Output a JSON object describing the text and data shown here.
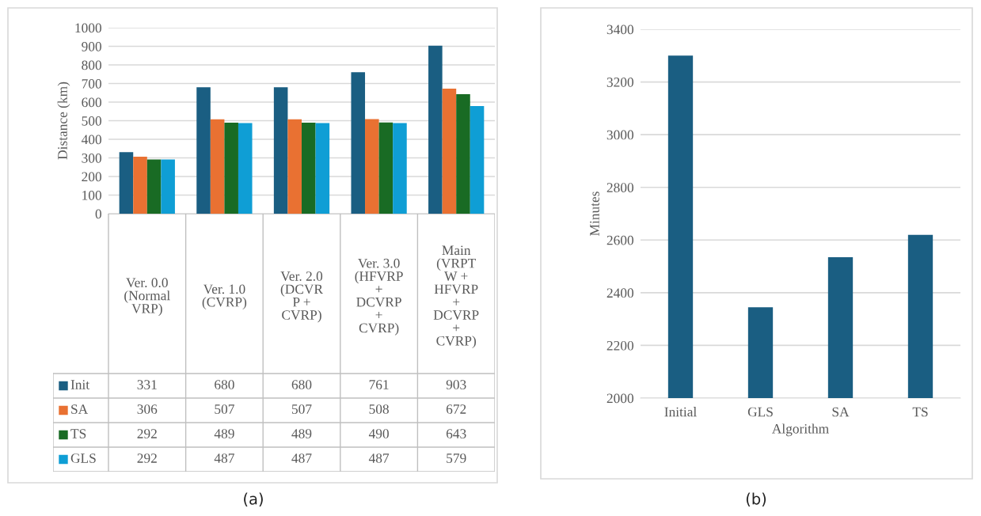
{
  "chart_data": [
    {
      "type": "bar",
      "ylabel": "Distance (km)",
      "ylim": [
        0,
        1000
      ],
      "yticks": [
        0,
        100,
        200,
        300,
        400,
        500,
        600,
        700,
        800,
        900,
        1000
      ],
      "grid": "y",
      "data_labels": true,
      "legend": "bottom",
      "categories": [
        "Ver. 0.0\n(Normal\nVRP)",
        "Ver. 1.0\n(CVRP)",
        "Ver. 2.0\n(DCVR\nP +\nCVRP)",
        "Ver. 3.0\n(HFVRP\n+\nDCVRP\n+\nCVRP)",
        "Main\n(VRPT\nW +\nHFVRP\n+\nDCVRP\n+\nCVRP)"
      ],
      "series": [
        {
          "name": "Init",
          "color": "#1a5e82",
          "values": [
            331,
            680,
            680,
            761,
            903
          ]
        },
        {
          "name": "SA",
          "color": "#e97132",
          "values": [
            306,
            507,
            507,
            508,
            672
          ]
        },
        {
          "name": "TS",
          "color": "#196b24",
          "values": [
            292,
            489,
            489,
            490,
            643
          ]
        },
        {
          "name": "GLS",
          "color": "#0f9ed5",
          "values": [
            292,
            487,
            487,
            487,
            579
          ]
        }
      ],
      "annotations": [
        "(a)"
      ]
    },
    {
      "type": "bar",
      "xlabel": "Algorithm",
      "ylabel": "Minutes",
      "ylim": [
        2000,
        3400
      ],
      "yticks": [
        2000,
        2200,
        2400,
        2600,
        2800,
        3000,
        3200,
        3400
      ],
      "grid": "y",
      "categories": [
        "Initial",
        "GLS",
        "SA",
        "TS"
      ],
      "series": [
        {
          "color": "#1a5e82",
          "values": [
            3300,
            2345,
            2535,
            2620
          ]
        }
      ],
      "annotations": [
        "(b)"
      ]
    }
  ]
}
